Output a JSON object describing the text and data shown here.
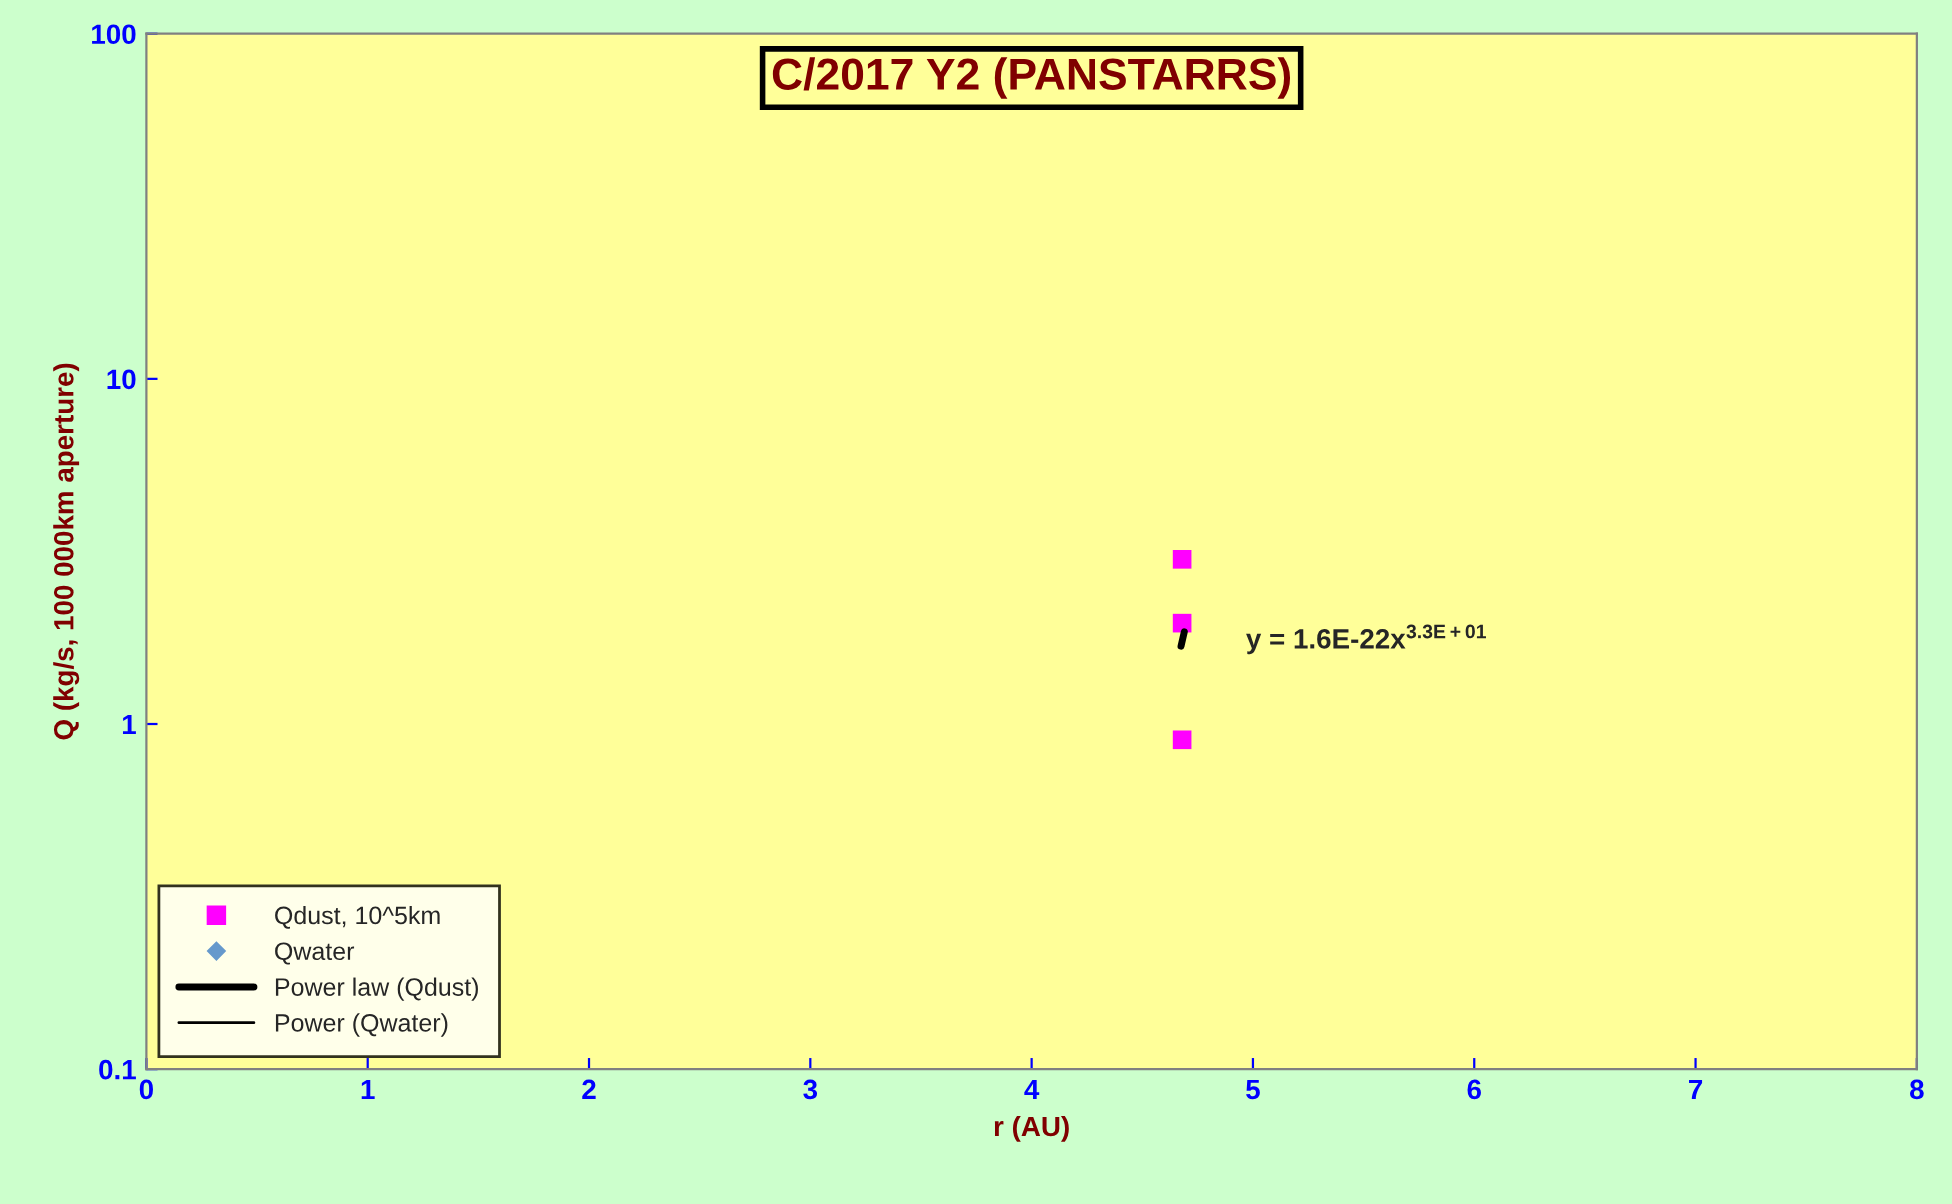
{
  "chart_data": {
    "type": "scatter",
    "title": "C/2017 Y2 (PANSTARRS)",
    "xlabel": "r (AU)",
    "ylabel": "Q (kg/s, 100 000km aperture)",
    "series": [
      {
        "name": "Qdust, 10^5km",
        "marker": "square",
        "color": "#ff00ff",
        "x": [
          4.68,
          4.68,
          4.68
        ],
        "values": [
          3.0,
          1.96,
          0.9
        ]
      },
      {
        "name": "Qwater",
        "marker": "diamond",
        "color": "#6699cc"
      },
      {
        "name": "Power law (Qdust)",
        "type": "line",
        "marker": "none",
        "color": "#000000",
        "x": [
          4.675,
          4.69
        ],
        "values": [
          1.68,
          1.85
        ]
      },
      {
        "name": "Power (Qwater)",
        "type": "line",
        "marker": "none",
        "color": "#000000"
      }
    ],
    "annotations": [
      "y = 1.6E-22x$^{3.3E+01}$"
    ],
    "xlim": [
      0,
      8
    ],
    "xticks": [
      0,
      1,
      2,
      3,
      4,
      5,
      6,
      7,
      8
    ],
    "ylim": [
      0.1,
      100
    ],
    "yticks": [
      0.1,
      1,
      10,
      100
    ],
    "log": true,
    "grid": false,
    "legend": "bottom left"
  }
}
